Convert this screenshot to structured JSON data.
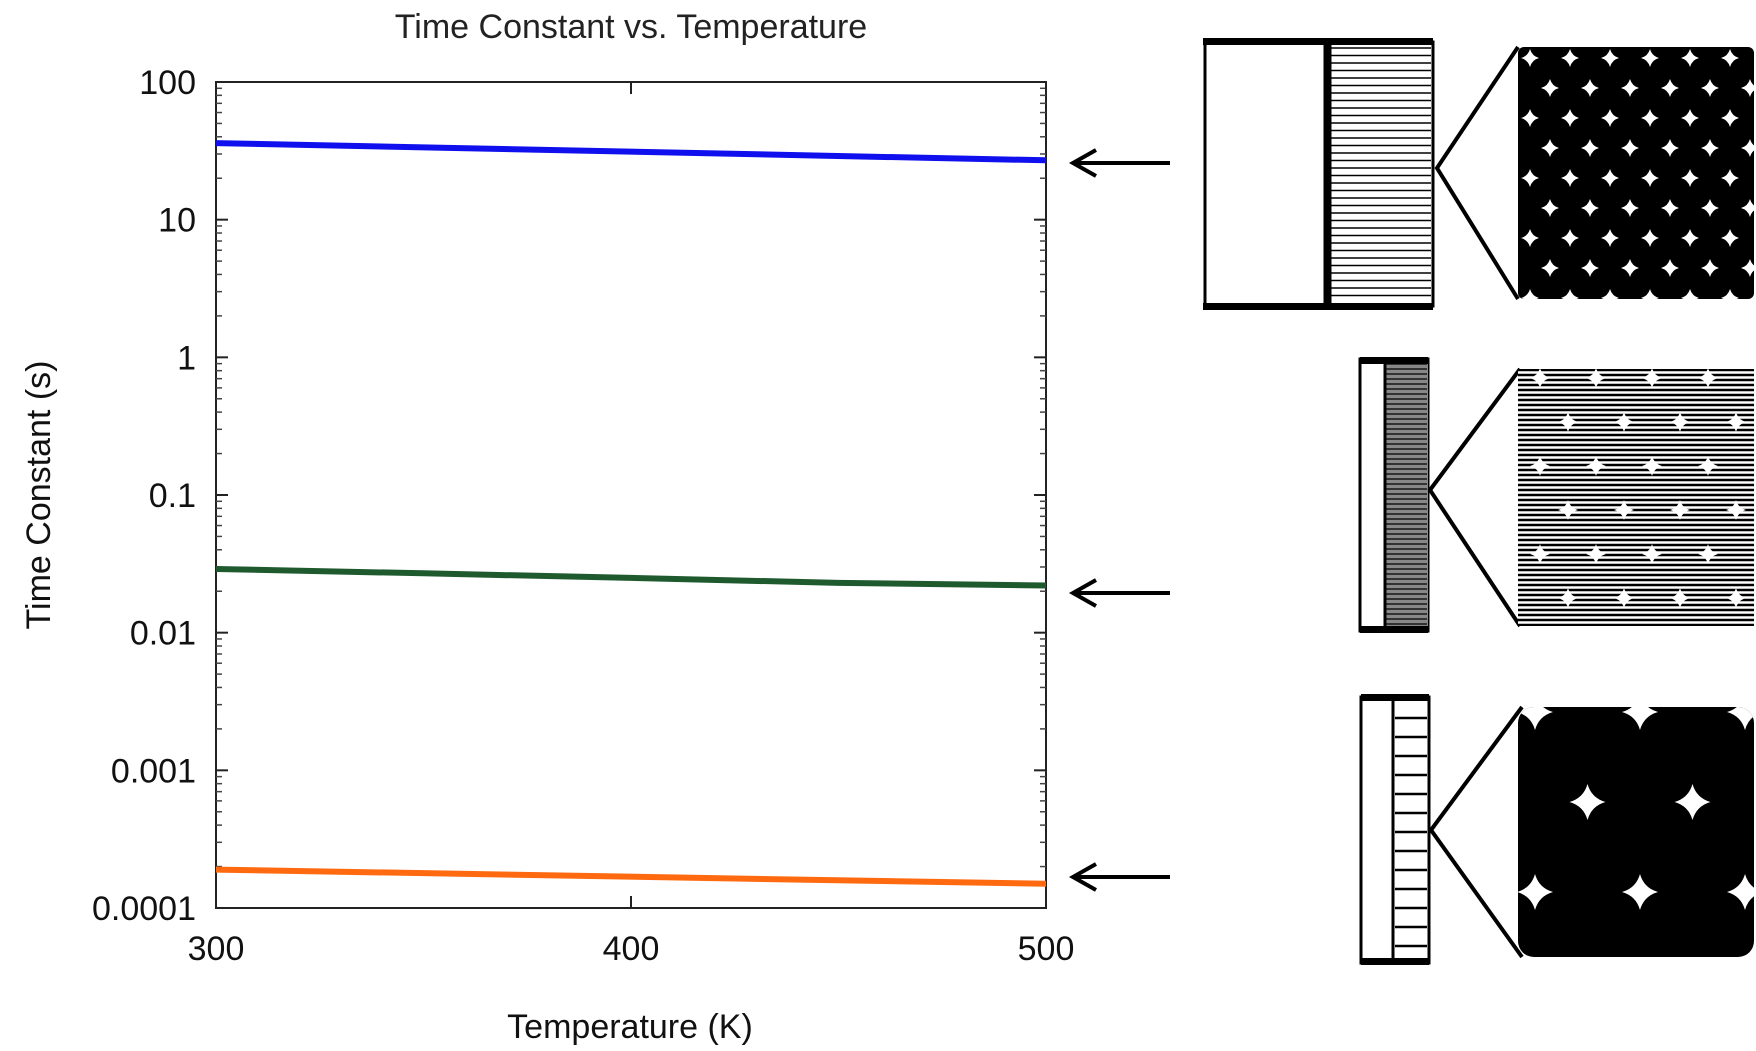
{
  "chart_data": {
    "type": "line",
    "title": "Time Constant vs. Temperature",
    "xlabel": "Temperature (K)",
    "ylabel": "Time Constant (s)",
    "xlim": [
      300,
      500
    ],
    "ylim": [
      0.0001,
      100
    ],
    "yscale": "log",
    "grid": false,
    "x_ticks": [
      300,
      400,
      500
    ],
    "x_tick_labels": [
      "300",
      "400",
      "500"
    ],
    "y_ticks": [
      0.0001,
      0.001,
      0.01,
      0.1,
      1,
      10,
      100
    ],
    "y_tick_labels": [
      "0.0001",
      "0.001",
      "0.01",
      "0.1",
      "1",
      "10",
      "100"
    ],
    "series": [
      {
        "color": "#1010ee",
        "x": [
          300,
          500
        ],
        "y": [
          36,
          27
        ]
      },
      {
        "color": "#1f5a2e",
        "x": [
          300,
          350,
          400,
          450,
          500
        ],
        "y": [
          0.029,
          0.027,
          0.025,
          0.023,
          0.022
        ]
      },
      {
        "color": "#ff6a10",
        "x": [
          300,
          500
        ],
        "y": [
          0.00019,
          0.00015
        ]
      }
    ]
  },
  "schematics": [
    {
      "shape": "wide-bar",
      "zoom_pattern": "packed-spheres",
      "icon": "arrow-left-icon"
    },
    {
      "shape": "narrow-bar",
      "zoom_pattern": "fine-lamellae",
      "icon": "arrow-left-icon"
    },
    {
      "shape": "narrow-bar",
      "zoom_pattern": "large-spheres",
      "icon": "arrow-left-icon"
    }
  ]
}
